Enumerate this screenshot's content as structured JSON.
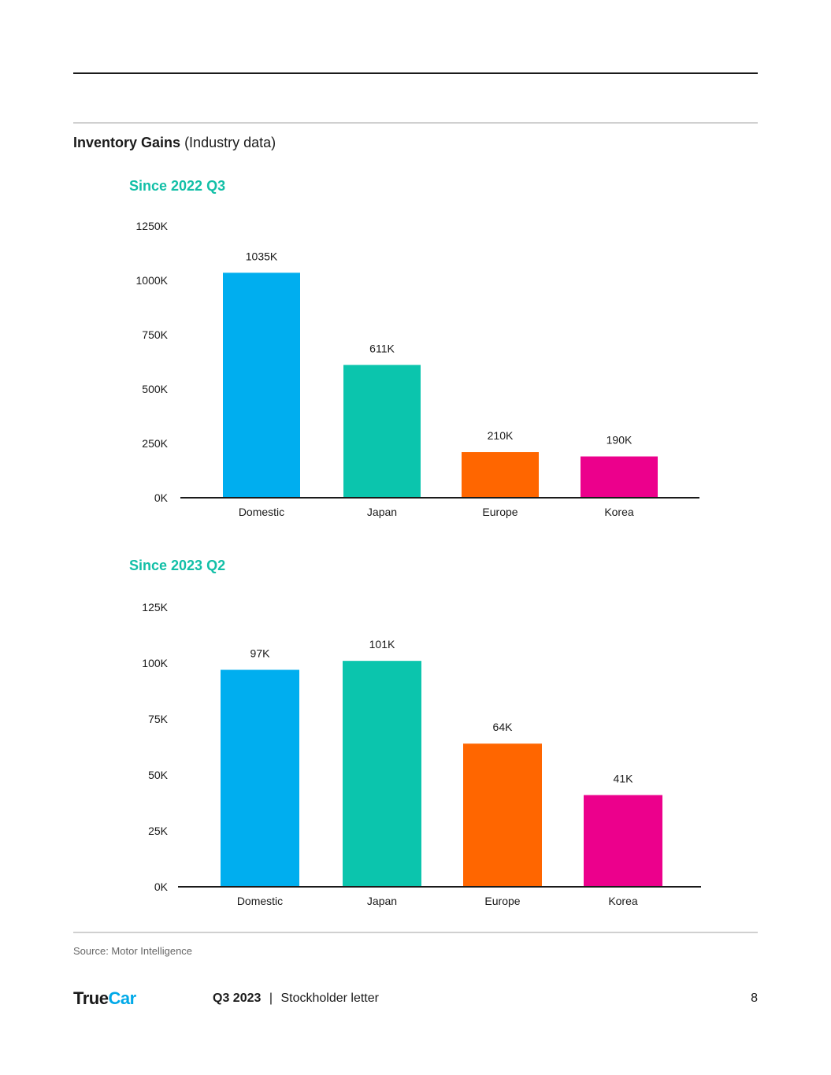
{
  "header": {
    "title_bold": "Inventory Gains",
    "title_rest": "(Industry data)"
  },
  "chart_data": [
    {
      "type": "bar",
      "title": "Since 2022 Q3",
      "categories": [
        "Domestic",
        "Japan",
        "Europe",
        "Korea"
      ],
      "values": [
        1035,
        611,
        210,
        190
      ],
      "value_labels": [
        "1035K",
        "611K",
        "210K",
        "190K"
      ],
      "colors": [
        "#00aeef",
        "#0bc5ad",
        "#ff6600",
        "#ec008c"
      ],
      "yticks": [
        "0K",
        "250K",
        "500K",
        "750K",
        "1000K",
        "1250K"
      ],
      "ytick_values": [
        0,
        250,
        500,
        750,
        1000,
        1250
      ],
      "ylim": [
        0,
        1250
      ],
      "xlabel": "",
      "ylabel": "",
      "grid": false
    },
    {
      "type": "bar",
      "title": "Since 2023 Q2",
      "categories": [
        "Domestic",
        "Japan",
        "Europe",
        "Korea"
      ],
      "values": [
        97,
        101,
        64,
        41
      ],
      "value_labels": [
        "97K",
        "101K",
        "64K",
        "41K"
      ],
      "colors": [
        "#00aeef",
        "#0bc5ad",
        "#ff6600",
        "#ec008c"
      ],
      "yticks": [
        "0K",
        "25K",
        "50K",
        "75K",
        "100K",
        "125K"
      ],
      "ytick_values": [
        0,
        25,
        50,
        75,
        100,
        125
      ],
      "ylim": [
        0,
        125
      ],
      "xlabel": "",
      "ylabel": "",
      "grid": false
    }
  ],
  "source": "Source: Motor Intelligence",
  "footer": {
    "logo_true": "True",
    "logo_car": "Car",
    "period": "Q3 2023",
    "separator": "|",
    "doc_name": "Stockholder letter",
    "page_number": "8"
  }
}
